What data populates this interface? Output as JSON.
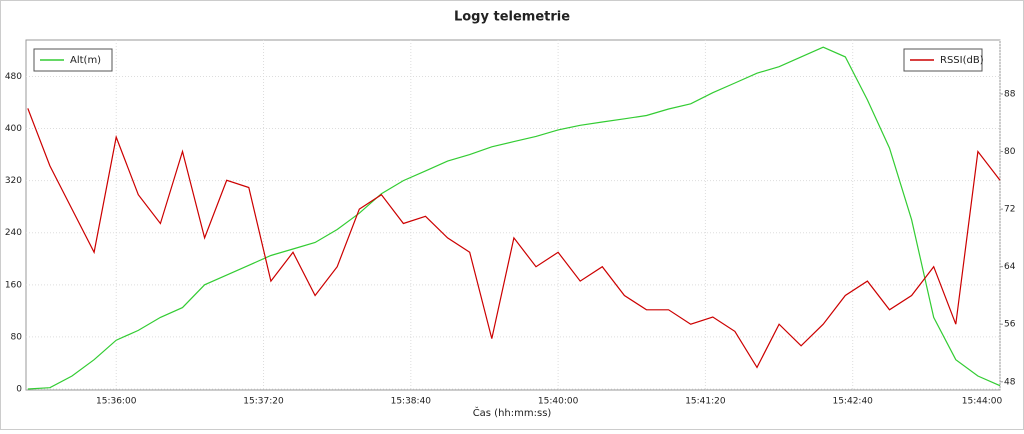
{
  "chart_data": {
    "type": "line",
    "title": "Logy telemetrie",
    "x_label": "Čas (hh:mm:ss)",
    "x": [
      56112,
      56124,
      56136,
      56148,
      56160,
      56172,
      56184,
      56196,
      56208,
      56220,
      56232,
      56244,
      56256,
      56268,
      56280,
      56292,
      56304,
      56316,
      56328,
      56340,
      56352,
      56364,
      56376,
      56388,
      56400,
      56412,
      56424,
      56436,
      56448,
      56460,
      56472,
      56484,
      56496,
      56508,
      56520,
      56532,
      56544,
      56556,
      56568,
      56580,
      56592,
      56604,
      56616,
      56628,
      56640
    ],
    "xlim": [
      56111,
      56640
    ],
    "xticks": [
      {
        "value": 56160,
        "label": "15:36:00"
      },
      {
        "value": 56240,
        "label": "15:37:20"
      },
      {
        "value": 56320,
        "label": "15:38:40"
      },
      {
        "value": 56400,
        "label": "15:40:00"
      },
      {
        "value": 56480,
        "label": "15:41:20"
      },
      {
        "value": 56560,
        "label": "15:42:40"
      },
      {
        "value": 56640,
        "label": "15:44:00"
      }
    ],
    "ylim": [
      0,
      536
    ],
    "yticks": [
      0,
      80,
      160,
      240,
      320,
      400,
      480
    ],
    "y2lim": [
      47,
      95.5
    ],
    "y2ticks": [
      48,
      56,
      64,
      72,
      80,
      88
    ],
    "grid": true,
    "series": [
      {
        "name": "Alt(m)",
        "color": "#33cc33",
        "legend": "top-left",
        "values": [
          0,
          2,
          20,
          45,
          75,
          90,
          110,
          125,
          160,
          175,
          190,
          205,
          215,
          225,
          245,
          270,
          300,
          320,
          335,
          350,
          360,
          372,
          380,
          388,
          398,
          405,
          410,
          415,
          420,
          430,
          438,
          455,
          470,
          485,
          495,
          510,
          525,
          510,
          444,
          370,
          260,
          110,
          45,
          20,
          5
        ]
      },
      {
        "name": "RSSI(dB)",
        "color": "#cc0000",
        "axis": "y2",
        "legend": "top-right",
        "values": [
          86,
          78,
          72,
          66,
          82,
          74,
          70,
          80,
          68,
          76,
          75,
          62,
          66,
          60,
          64,
          72,
          74,
          70,
          71,
          68,
          66,
          54,
          68,
          64,
          66,
          62,
          64,
          60,
          58,
          58,
          56,
          57,
          55,
          50,
          56,
          53,
          56,
          60,
          62,
          58,
          60,
          64,
          56,
          80,
          76
        ]
      }
    ]
  }
}
